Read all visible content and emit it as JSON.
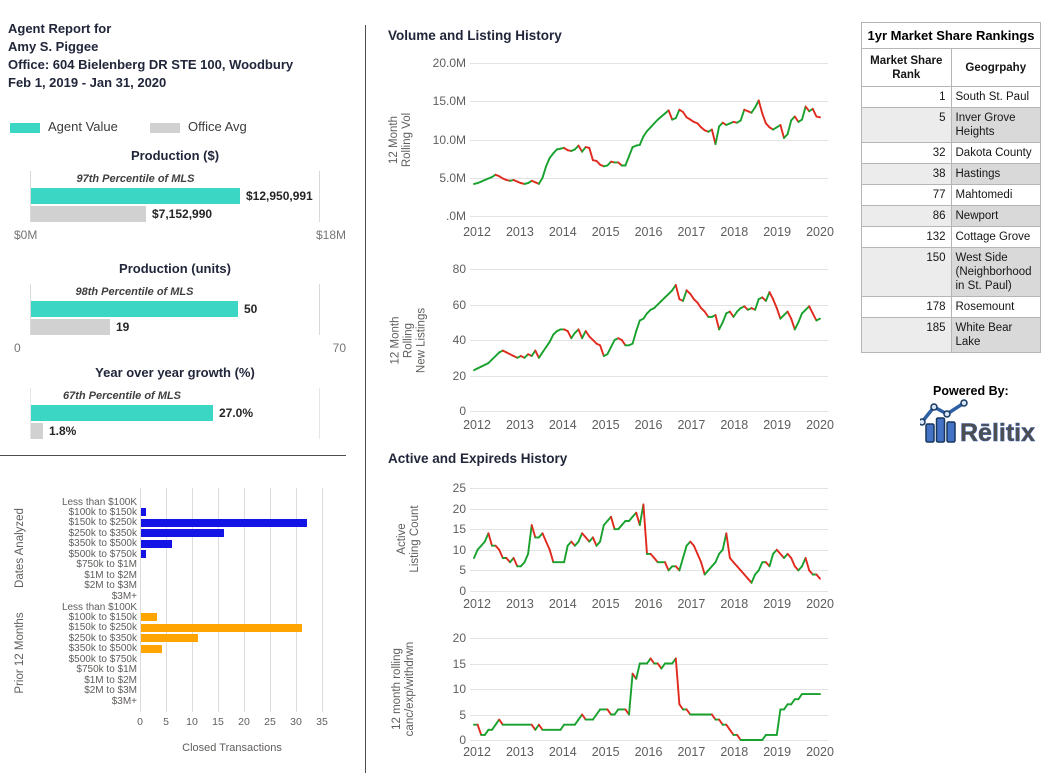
{
  "report_header": {
    "line1": "Agent Report for",
    "line2": "Amy S. Piggee",
    "line3": "Office: 604 Bielenberg DR STE 100, Woodbury",
    "line4": "Feb 1, 2019 - Jan 31, 2020"
  },
  "legend": {
    "agent_label": "Agent Value",
    "office_label": "Office Avg",
    "agent_color": "#3cd6c4",
    "office_color": "#d1d1d1"
  },
  "colors": {
    "line_up": "#18a12d",
    "line_down": "#e02a1e",
    "bar_blue": "#1414e6",
    "bar_orange": "#ffa400"
  },
  "sections": {
    "volume_listing_title": "Volume and Listing History",
    "active_expireds_title": "Active and Expireds History",
    "powered_by": "Powered By:",
    "logo_text": "Rēlitix"
  },
  "rankings_table": {
    "title": "1yr Market Share Rankings",
    "col1_header": "Market Share Rank",
    "col2_header": "Geogrpahy",
    "rows": [
      {
        "rank": "1",
        "geography": "South St. Paul"
      },
      {
        "rank": "5",
        "geography": "Inver Grove Heights"
      },
      {
        "rank": "32",
        "geography": "Dakota County"
      },
      {
        "rank": "38",
        "geography": "Hastings"
      },
      {
        "rank": "77",
        "geography": "Mahtomedi"
      },
      {
        "rank": "86",
        "geography": "Newport"
      },
      {
        "rank": "132",
        "geography": "Cottage Grove"
      },
      {
        "rank": "150",
        "geography": "West Side (Neighborhood in St. Paul)"
      },
      {
        "rank": "178",
        "geography": "Rosemount"
      },
      {
        "rank": "185",
        "geography": "White Bear Lake"
      }
    ]
  },
  "chart_data": [
    {
      "id": "production_dollars",
      "type": "bar",
      "title": "Production ($)",
      "annotation": "97th Percentile of MLS",
      "series": [
        {
          "name": "Agent Value",
          "value": 12950991,
          "label": "$12,950,991"
        },
        {
          "name": "Office Avg",
          "value": 7152990,
          "label": "$7,152,990"
        }
      ],
      "axis": {
        "min": 0,
        "max": 18000000,
        "min_label": "$0M",
        "max_label": "$18M"
      }
    },
    {
      "id": "production_units",
      "type": "bar",
      "title": "Production (units)",
      "annotation": "98th Percentile of MLS",
      "series": [
        {
          "name": "Agent Value",
          "value": 50,
          "label": "50"
        },
        {
          "name": "Office Avg",
          "value": 19,
          "label": "19"
        }
      ],
      "axis": {
        "min": 0,
        "max": 70,
        "min_label": "0",
        "max_label": "70"
      }
    },
    {
      "id": "yoy_growth",
      "type": "bar",
      "title": "Year over year growth (%)",
      "annotation": "67th Percentile of MLS",
      "series": [
        {
          "name": "Agent Value",
          "value": 27.0,
          "label": "27.0%"
        },
        {
          "name": "Office Avg",
          "value": 1.8,
          "label": "1.8%"
        }
      ],
      "axis": {
        "min": 0,
        "max": 43,
        "min_label": "",
        "max_label": ""
      }
    },
    {
      "id": "closed_transactions",
      "type": "bar",
      "orientation": "horizontal",
      "xlabel": "Closed Transactions",
      "x_ticks": [
        0,
        5,
        10,
        15,
        20,
        25,
        30,
        35
      ],
      "categories": [
        "Less than $100K",
        "$100k to $150k",
        "$150k to $250k",
        "$250k to $350k",
        "$350k to $500k",
        "$500k to $750k",
        "$750k to $1M",
        "$1M to $2M",
        "$2M to $3M",
        "$3M+"
      ],
      "series": [
        {
          "name": "Dates Analyzed",
          "color": "#1414e6",
          "values": [
            0,
            1,
            32,
            16,
            6,
            1,
            0,
            0,
            0,
            0
          ]
        },
        {
          "name": "Prior 12 Months",
          "color": "#ffa400",
          "values": [
            0,
            3,
            31,
            11,
            4,
            0,
            0,
            0,
            0,
            0
          ]
        }
      ]
    },
    {
      "id": "volume_history",
      "type": "line",
      "title": "Volume and Listing History",
      "ylabel_lines": [
        "12 Month",
        "Rolling Vol"
      ],
      "y_ticks": [
        "20.0M",
        "15.0M",
        "10.0M",
        "5.0M",
        ".0M"
      ],
      "y_max": 20,
      "values_unit": "millions",
      "x_years": [
        "2012",
        "2013",
        "2014",
        "2015",
        "2016",
        "2017",
        "2018",
        "2019",
        "2020"
      ],
      "values": [
        4.2,
        4.3,
        4.5,
        4.7,
        4.9,
        5.1,
        5.4,
        5.2,
        4.9,
        4.7,
        4.6,
        4.7,
        4.5,
        4.3,
        4.2,
        4.3,
        4.6,
        4.4,
        4.2,
        5.0,
        6.5,
        7.6,
        8.2,
        8.7,
        8.8,
        8.9,
        8.6,
        8.5,
        8.7,
        9.2,
        8.4,
        9.0,
        8.9,
        7.3,
        7.2,
        6.7,
        6.5,
        6.6,
        7.1,
        7.0,
        7.0,
        6.6,
        6.6,
        7.8,
        9.0,
        9.2,
        9.3,
        10.4,
        11.1,
        11.6,
        12.1,
        12.6,
        13.0,
        13.4,
        13.8,
        12.6,
        12.8,
        13.9,
        13.6,
        12.9,
        12.6,
        12.3,
        12.1,
        11.6,
        11.2,
        11.0,
        11.3,
        9.4,
        11.7,
        12.2,
        11.9,
        12.1,
        12.3,
        12.2,
        12.5,
        13.9,
        13.7,
        13.5,
        14.2,
        15.1,
        13.4,
        12.1,
        11.6,
        11.3,
        11.6,
        11.9,
        10.2,
        10.7,
        12.5,
        13.0,
        12.3,
        12.6,
        14.3,
        13.7,
        14.0,
        13.0,
        12.9
      ]
    },
    {
      "id": "new_listings_history",
      "type": "line",
      "ylabel_lines": [
        "12 Month",
        "Rolling",
        "New Listings"
      ],
      "y_ticks": [
        "80",
        "60",
        "40",
        "20",
        "0"
      ],
      "y_max": 80,
      "x_years": [
        "2012",
        "2013",
        "2014",
        "2015",
        "2016",
        "2017",
        "2018",
        "2019",
        "2020"
      ],
      "values": [
        23,
        24,
        25,
        26,
        27,
        29,
        31,
        33,
        34,
        33,
        32,
        31,
        30,
        31,
        30,
        32,
        31,
        34,
        30,
        33,
        36,
        39,
        43,
        45,
        46,
        46,
        45,
        41,
        44,
        46,
        41,
        45,
        42,
        40,
        38,
        37,
        31,
        32,
        36,
        40,
        41,
        40,
        37,
        37,
        38,
        45,
        51,
        52,
        55,
        57,
        58,
        60,
        62,
        64,
        66,
        68,
        71,
        63,
        62,
        68,
        66,
        63,
        61,
        58,
        56,
        53,
        53,
        54,
        46,
        50,
        55,
        56,
        53,
        56,
        58,
        59,
        57,
        58,
        57,
        63,
        64,
        62,
        67,
        63,
        58,
        52,
        54,
        56,
        52,
        46,
        50,
        55,
        57,
        59,
        55,
        51,
        52
      ]
    },
    {
      "id": "active_history",
      "type": "line",
      "title": "Active and Expireds History",
      "ylabel_lines": [
        "Active",
        "Listing Count"
      ],
      "y_ticks": [
        "25",
        "20",
        "15",
        "10",
        "5",
        "0"
      ],
      "y_max": 25,
      "x_years": [
        "2012",
        "2013",
        "2014",
        "2015",
        "2016",
        "2017",
        "2018",
        "2019",
        "2020"
      ],
      "values": [
        8,
        10,
        11,
        12,
        14,
        11,
        11,
        10,
        8,
        8,
        7,
        8,
        6,
        6,
        7,
        9,
        16,
        13,
        13,
        14,
        12,
        10,
        7,
        7,
        7,
        7,
        11,
        12,
        11,
        12,
        14,
        13,
        12,
        13,
        11,
        12,
        16,
        17,
        18,
        15,
        15,
        16,
        17,
        17,
        18,
        19,
        16,
        21,
        9,
        9,
        8,
        7,
        7,
        7,
        5,
        6,
        6,
        5,
        8,
        11,
        12,
        11,
        9,
        7,
        4,
        5,
        6,
        7,
        9,
        10,
        14,
        8,
        7,
        6,
        5,
        4,
        3,
        2,
        4,
        5,
        7,
        7,
        6,
        9,
        10,
        9,
        8,
        9,
        8,
        6,
        5,
        6,
        8,
        5,
        4,
        4,
        3
      ]
    },
    {
      "id": "cancexp_history",
      "type": "line",
      "ylabel_lines": [
        "12 month rolling",
        "canc/exp/withdrwn"
      ],
      "y_ticks": [
        "20",
        "15",
        "10",
        "5",
        "0"
      ],
      "y_max": 20,
      "x_years": [
        "2012",
        "2013",
        "2014",
        "2015",
        "2016",
        "2017",
        "2018",
        "2019",
        "2020"
      ],
      "values": [
        3,
        3,
        1,
        1,
        2,
        2,
        3,
        4,
        3,
        3,
        3,
        3,
        3,
        3,
        3,
        3,
        3,
        2,
        3,
        2,
        2,
        2,
        2,
        2,
        2,
        3,
        3,
        3,
        3,
        4,
        5,
        4,
        4,
        4,
        5,
        6,
        6,
        6,
        5,
        5,
        6,
        6,
        6,
        5,
        13,
        12,
        15,
        15,
        15,
        16,
        15,
        15,
        14,
        15,
        15,
        15,
        16,
        7,
        6,
        6,
        5,
        5,
        5,
        5,
        5,
        5,
        5,
        4,
        4,
        3,
        3,
        2,
        1,
        1,
        0,
        0,
        0,
        0,
        0,
        0,
        0,
        1,
        1,
        1,
        1,
        6,
        6,
        7,
        7,
        8,
        8,
        9,
        9,
        9,
        9,
        9,
        9
      ]
    }
  ]
}
